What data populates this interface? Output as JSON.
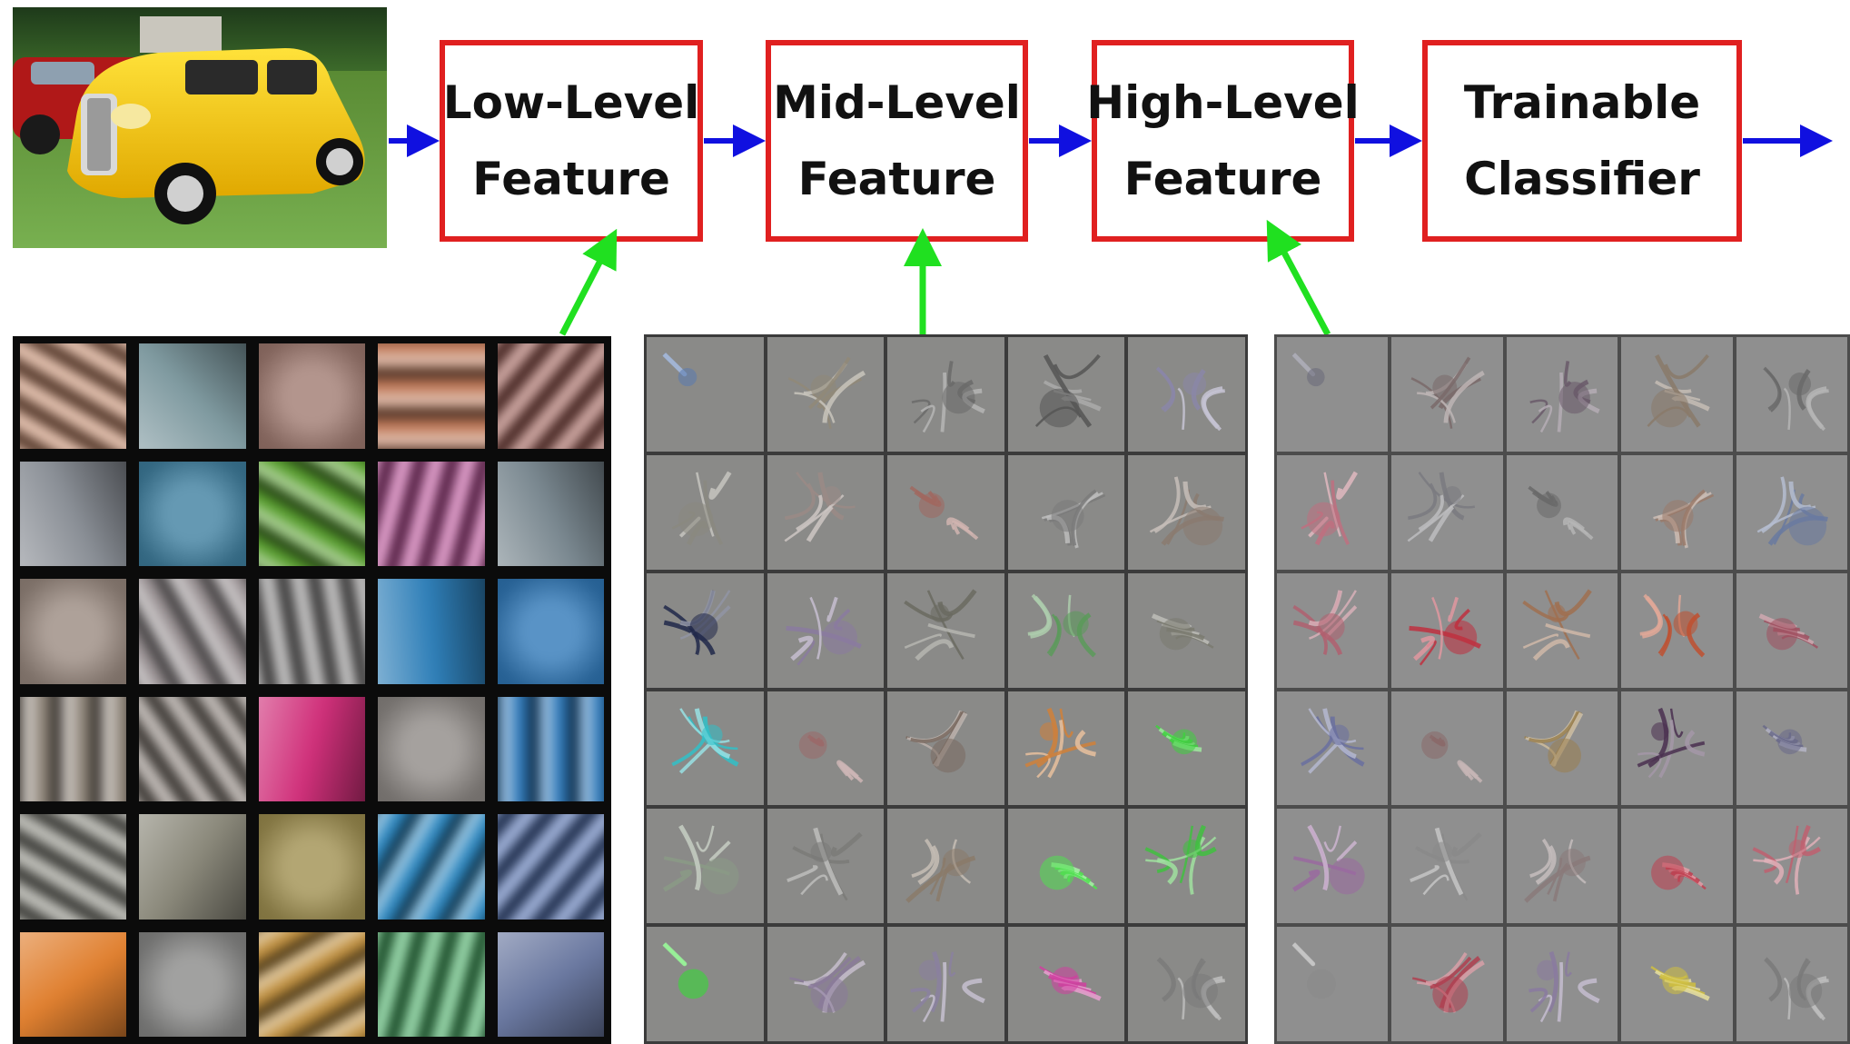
{
  "pipeline": {
    "input_image": "car photo",
    "stages": [
      {
        "line1": "Low-Level",
        "line2": "Feature"
      },
      {
        "line1": "Mid-Level",
        "line2": "Feature"
      },
      {
        "line1": "High-Level",
        "line2": "Feature"
      },
      {
        "line1": "Trainable",
        "line2": "Classifier"
      }
    ]
  },
  "colors": {
    "box_border": "#e02020",
    "flow_arrow": "#1010e0",
    "link_arrow": "#20e020",
    "low_bg": "#0b0b0b",
    "mid_bg": "#3b3b3b",
    "high_bg": "#4c4c4c"
  },
  "grids": {
    "low_level_filters": [
      [
        "#c98a6a",
        "#7f9aa0",
        "#a07a70",
        "#c07a5a",
        "#a05a50"
      ],
      [
        "#8a8f96",
        "#3f7fa0",
        "#5aa030",
        "#c04a9a",
        "#7a8890"
      ],
      [
        "#9a8a80",
        "#9a9294",
        "#8a8888",
        "#2f7fb8",
        "#2f78b8"
      ],
      [
        "#90867a",
        "#8a8078",
        "#d0307a",
        "#8f8a86",
        "#2f78b8"
      ],
      [
        "#8a8a80",
        "#8a887a",
        "#a09050",
        "#2f88c0",
        "#4a6ab0"
      ],
      [
        "#e08030",
        "#8a8a88",
        "#c09040",
        "#40b060",
        "#6a78a0"
      ]
    ],
    "mid_level_filters": [
      [
        "#5a7ab0",
        "#908878",
        "#6a6a6a",
        "#555555",
        "#8a86a8"
      ],
      [
        "#8a8880",
        "#9a8a86",
        "#a06860",
        "#7a7a7a",
        "#8a7a70"
      ],
      [
        "#20284a",
        "#8a7aa0",
        "#6a6a60",
        "#5a9a5a",
        "#7a7a70"
      ],
      [
        "#30c0c8",
        "#9a6a6a",
        "#7a6a60",
        "#d0803a",
        "#40d040"
      ],
      [
        "#8a9a86",
        "#7a7a78",
        "#8a7a6a",
        "#50e050",
        "#40c040"
      ],
      [
        "#30e030",
        "#8a7a9a",
        "#8a80a0",
        "#d040a0",
        "#7a7a7a"
      ]
    ],
    "high_level_filters": [
      [
        "#6a6a7a",
        "#7a6a6a",
        "#6a5a6a",
        "#8a7a6a",
        "#6a6a6a"
      ],
      [
        "#c07080",
        "#7a7a80",
        "#6a6a6a",
        "#9a7a6a",
        "#6a7aa0"
      ],
      [
        "#b06070",
        "#c03040",
        "#a07050",
        "#c05030",
        "#a05060"
      ],
      [
        "#6a70a0",
        "#8a6a6a",
        "#9a8050",
        "#4a3050",
        "#6a6a8a"
      ],
      [
        "#9a6aa0",
        "#8a8a8a",
        "#8a7a7a",
        "#c04050",
        "#c06070"
      ],
      [
        "#8a8a8a",
        "#b04050",
        "#8a7aa0",
        "#d0c040",
        "#7a7a7a"
      ]
    ]
  }
}
